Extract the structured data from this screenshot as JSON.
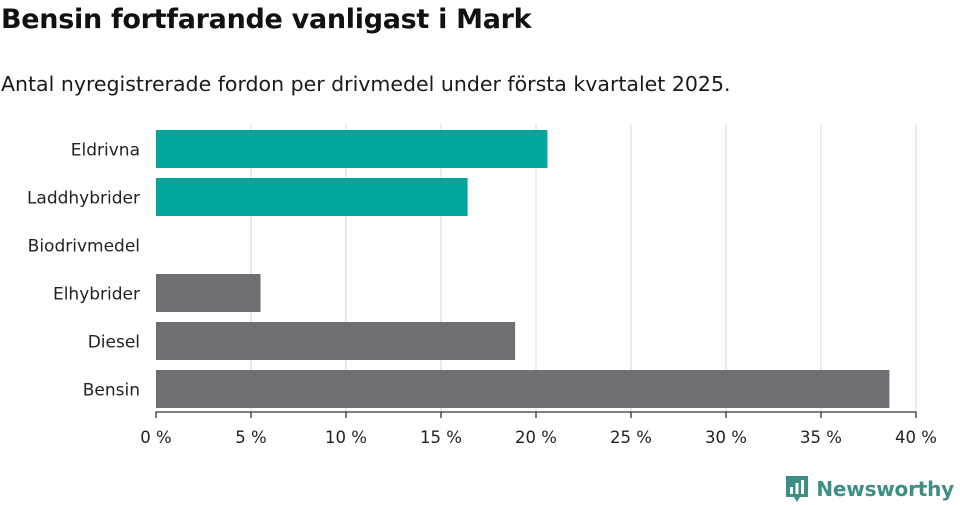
{
  "title": "Bensin fortfarande vanligast i Mark",
  "subtitle": "Antal nyregistrerade fordon per drivmedel under första kvartalet 2025.",
  "brand": {
    "name": "Newsworthy",
    "icon": "newsworthy-logo-icon",
    "color": "#3d8f86"
  },
  "colors": {
    "highlight": "#00a69a",
    "default": "#6e6e73",
    "grid": "#dedede",
    "axis": "#333333"
  },
  "chart_data": {
    "type": "bar",
    "orientation": "horizontal",
    "categories": [
      "Eldrivna",
      "Laddhybrider",
      "Biodrivmedel",
      "Elhybrider",
      "Diesel",
      "Bensin"
    ],
    "values": [
      20.6,
      16.4,
      0,
      5.5,
      18.9,
      38.6
    ],
    "highlighted": [
      true,
      true,
      true,
      false,
      false,
      false
    ],
    "xlim": [
      0,
      40
    ],
    "xticks": [
      0,
      5,
      10,
      15,
      20,
      25,
      30,
      35,
      40
    ],
    "xtick_labels": [
      "0 %",
      "5 %",
      "10 %",
      "15 %",
      "20 %",
      "25 %",
      "30 %",
      "35 %",
      "40 %"
    ],
    "grid": true,
    "legend": "none"
  }
}
